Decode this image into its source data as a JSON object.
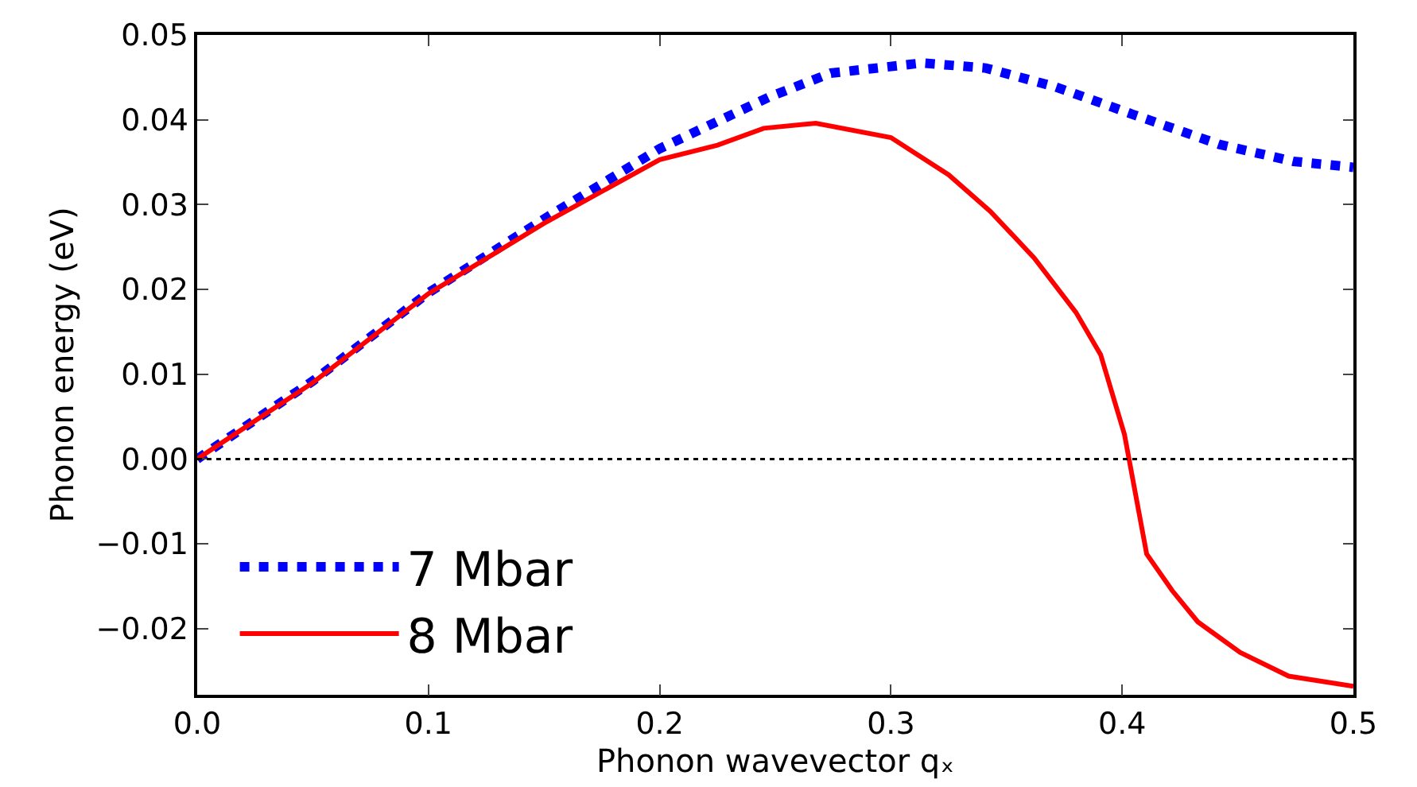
{
  "chart_data": {
    "type": "line",
    "xlabel": "Phonon wavevector qₓ",
    "ylabel": "Phonon energy (eV)",
    "xlim": [
      0,
      0.5
    ],
    "xticks": [
      {
        "value": 0,
        "label": "0.0"
      },
      0.1,
      0.2,
      0.3,
      0.4,
      0.5
    ],
    "ylim": [
      -0.0278,
      0.05
    ],
    "yticks": [
      {
        "value": -0.02,
        "label": "−0.02"
      },
      {
        "value": -0.01,
        "label": "−0.01"
      },
      {
        "value": 0,
        "label": "0.00"
      },
      {
        "value": 0.01,
        "label": "0.01"
      },
      {
        "value": 0.02,
        "label": "0.02"
      },
      {
        "value": 0.03,
        "label": "0.03"
      },
      {
        "value": 0.04,
        "label": "0.04"
      },
      {
        "value": 0.05,
        "label": "0.05"
      }
    ],
    "legend": "bottom left",
    "marker": "none",
    "ref_lines": [
      {
        "axis": "y",
        "value": 0,
        "color": "#000000",
        "line_style": "dotted"
      }
    ],
    "series": [
      {
        "name": "7 Mbar",
        "color": "#0000ff",
        "line_style": "dotted",
        "x": [
          0,
          0.05,
          0.1,
          0.15,
          0.2,
          0.2475,
          0.274,
          0.3136,
          0.341,
          0.371,
          0.405,
          0.442,
          0.474,
          0.5
        ],
        "values": [
          0,
          0.0092,
          0.0196,
          0.0283,
          0.0366,
          0.0427,
          0.0455,
          0.0467,
          0.0461,
          0.0439,
          0.0406,
          0.0371,
          0.0351,
          0.0344
        ]
      },
      {
        "name": "8 Mbar",
        "color": "#ff0000",
        "line_style": "solid",
        "x": [
          0,
          0.05,
          0.1,
          0.15,
          0.2,
          0.225,
          0.245,
          0.2675,
          0.3,
          0.325,
          0.343,
          0.362,
          0.38,
          0.3907,
          0.401,
          0.4106,
          0.4216,
          0.4327,
          0.451,
          0.472,
          0.5
        ],
        "values": [
          0,
          0.009,
          0.0195,
          0.0278,
          0.0353,
          0.037,
          0.039,
          0.0396,
          0.0379,
          0.0335,
          0.0292,
          0.0237,
          0.0173,
          0.0123,
          0.0029,
          -0.0112,
          -0.0155,
          -0.0192,
          -0.0228,
          -0.0256,
          -0.0268
        ]
      }
    ]
  }
}
